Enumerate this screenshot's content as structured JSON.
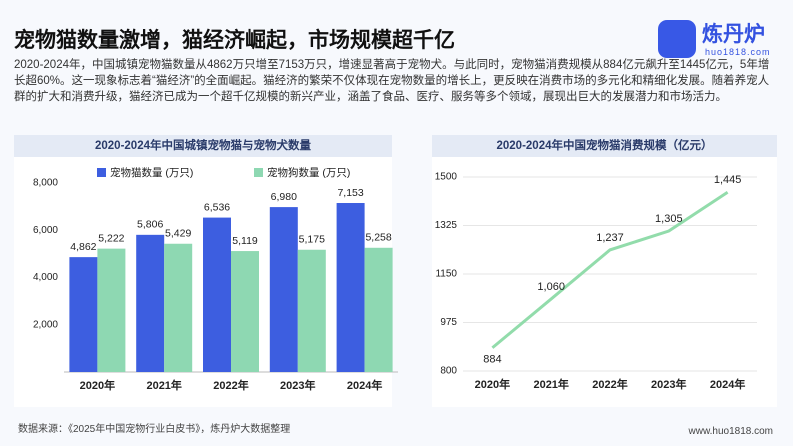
{
  "header": {
    "title": "宠物猫数量激增，猫经济崛起，市场规模超千亿",
    "paragraph": "2020-2024年，中国城镇宠物猫数量从4862万只增至7153万只，增速显著高于宠物犬。与此同时，宠物猫消费规模从884亿元飙升至1445亿元，5年增长超60%。这一现象标志着“猫经济”的全面崛起。猫经济的繁荣不仅体现在宠物数量的增长上，更反映在消费市场的多元化和精细化发展。随着养宠人群的扩大和消费升级，猫经济已成为一个超千亿规模的新兴产业，涵盖了食品、医疗、服务等多个领域，展现出巨大的发展潜力和市场活力。",
    "logo_name": "炼丹炉",
    "logo_site": "huo1818.com"
  },
  "footer": {
    "source": "数据来源：《2025年中国宠物行业白皮书》，炼丹炉大数据整理",
    "url": "www.huo1818.com"
  },
  "chart_data": [
    {
      "type": "bar",
      "title": "2020-2024年中国城镇宠物猫与宠物犬数量",
      "categories": [
        "2020年",
        "2021年",
        "2022年",
        "2023年",
        "2024年"
      ],
      "series": [
        {
          "name": "宠物猫数量 (万只)",
          "color": "#3d5ee0",
          "values": [
            4862,
            5806,
            6536,
            6980,
            7153
          ],
          "value_labels": [
            "4,862",
            "5,806",
            "6,536",
            "6,980",
            "7,153"
          ]
        },
        {
          "name": "宠物狗数量 (万只)",
          "color": "#8ed8b2",
          "values": [
            5222,
            5429,
            5119,
            5175,
            5258
          ],
          "value_labels": [
            "5,222",
            "5,429",
            "5,119",
            "5,175",
            "5,258"
          ]
        }
      ],
      "ylim": [
        0,
        8000
      ],
      "yticks": [
        {
          "value": 2000,
          "label": "2,000"
        },
        {
          "value": 4000,
          "label": "4,000"
        },
        {
          "value": 6000,
          "label": "6,000"
        },
        {
          "value": 8000,
          "label": "8,000"
        }
      ],
      "grid": false
    },
    {
      "type": "line",
      "title": "2020-2024年中国宠物猫消费规模（亿元）",
      "categories": [
        "2020年",
        "2021年",
        "2022年",
        "2023年",
        "2024年"
      ],
      "values": [
        884,
        1060,
        1237,
        1305,
        1445
      ],
      "value_labels": [
        "884",
        "1,060",
        "1,237",
        "1,305",
        "1,445"
      ],
      "color": "#92dcab",
      "ylim": [
        800,
        1500
      ],
      "yticks": [
        800,
        975,
        1150,
        1325,
        1500
      ],
      "grid": true
    }
  ]
}
